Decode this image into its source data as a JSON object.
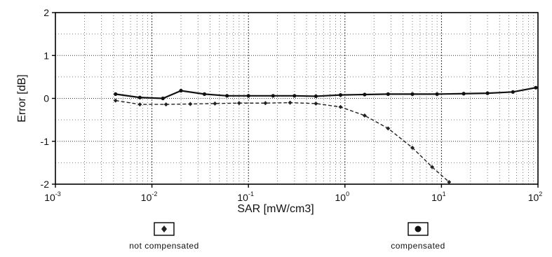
{
  "chart_data": {
    "type": "line",
    "title": "",
    "xlabel": "SAR [mW/cm3]",
    "ylabel": "Error [dB]",
    "x_scale": "log",
    "xlim": [
      0.001,
      100
    ],
    "ylim": [
      -2,
      2
    ],
    "x_ticks": [
      {
        "base": "10",
        "exp": "-3",
        "value": 0.001
      },
      {
        "base": "10",
        "exp": "-2",
        "value": 0.01
      },
      {
        "base": "10",
        "exp": "-1",
        "value": 0.1
      },
      {
        "base": "10",
        "exp": "0",
        "value": 1
      },
      {
        "base": "10",
        "exp": "1",
        "value": 10
      },
      {
        "base": "10",
        "exp": "2",
        "value": 100
      }
    ],
    "y_ticks": [
      {
        "label": "2",
        "value": 2
      },
      {
        "label": "1",
        "value": 1
      },
      {
        "label": "0",
        "value": 0
      },
      {
        "label": "-1",
        "value": -1
      },
      {
        "label": "-2",
        "value": -2
      }
    ],
    "grid": true,
    "legend_position": "bottom",
    "series": [
      {
        "name": "not compensated",
        "color": "#222222",
        "line_style": "dashed",
        "marker": "diamond",
        "points": [
          {
            "x": 0.0042,
            "y": -0.05
          },
          {
            "x": 0.0075,
            "y": -0.14
          },
          {
            "x": 0.014,
            "y": -0.14
          },
          {
            "x": 0.025,
            "y": -0.13
          },
          {
            "x": 0.045,
            "y": -0.12
          },
          {
            "x": 0.08,
            "y": -0.11
          },
          {
            "x": 0.15,
            "y": -0.11
          },
          {
            "x": 0.27,
            "y": -0.1
          },
          {
            "x": 0.5,
            "y": -0.12
          },
          {
            "x": 0.9,
            "y": -0.2
          },
          {
            "x": 1.6,
            "y": -0.4
          },
          {
            "x": 2.8,
            "y": -0.7
          },
          {
            "x": 5,
            "y": -1.15
          },
          {
            "x": 8,
            "y": -1.6
          },
          {
            "x": 12,
            "y": -1.95
          }
        ]
      },
      {
        "name": "compensated",
        "color": "#111111",
        "line_style": "solid",
        "marker": "circle",
        "points": [
          {
            "x": 0.0042,
            "y": 0.1
          },
          {
            "x": 0.0075,
            "y": 0.02
          },
          {
            "x": 0.013,
            "y": 0.0
          },
          {
            "x": 0.02,
            "y": 0.18
          },
          {
            "x": 0.035,
            "y": 0.1
          },
          {
            "x": 0.06,
            "y": 0.06
          },
          {
            "x": 0.1,
            "y": 0.06
          },
          {
            "x": 0.18,
            "y": 0.06
          },
          {
            "x": 0.3,
            "y": 0.06
          },
          {
            "x": 0.5,
            "y": 0.05
          },
          {
            "x": 0.9,
            "y": 0.08
          },
          {
            "x": 1.6,
            "y": 0.09
          },
          {
            "x": 2.8,
            "y": 0.1
          },
          {
            "x": 5,
            "y": 0.1
          },
          {
            "x": 9,
            "y": 0.1
          },
          {
            "x": 17,
            "y": 0.11
          },
          {
            "x": 30,
            "y": 0.12
          },
          {
            "x": 55,
            "y": 0.15
          },
          {
            "x": 95,
            "y": 0.25
          }
        ]
      }
    ]
  }
}
